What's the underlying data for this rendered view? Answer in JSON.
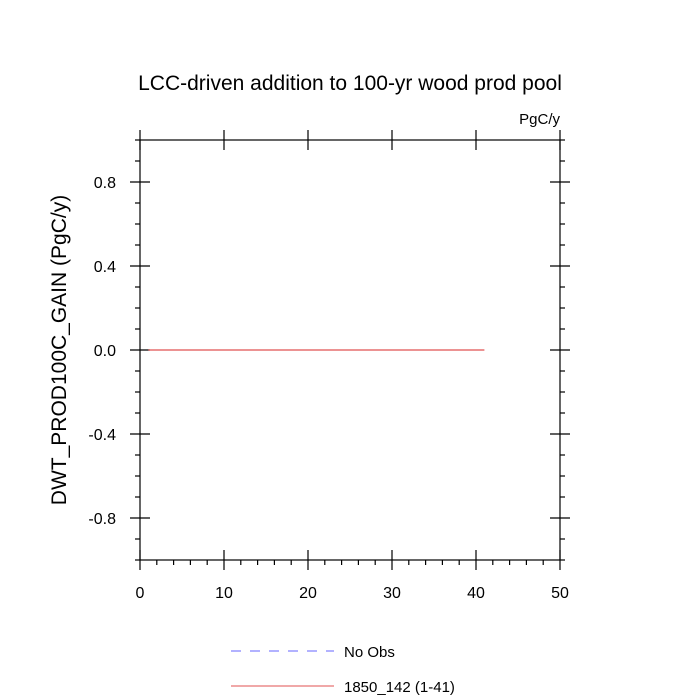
{
  "chart_data": {
    "type": "line",
    "title": "LCC-driven addition to 100-yr wood prod pool",
    "units_label": "PgC/y",
    "xlabel": "",
    "ylabel": "DWT_PROD100C_GAIN  (PgC/y)",
    "xlim": [
      0,
      50
    ],
    "ylim": [
      -1.0,
      1.0
    ],
    "x_ticks": [
      0,
      10,
      20,
      30,
      40,
      50
    ],
    "y_ticks": [
      0.8,
      0.4,
      0.0,
      -0.4,
      -0.8
    ],
    "y_tick_labels": [
      "0.8",
      "0.4",
      "0.0",
      "-0.4",
      "-0.8"
    ],
    "grid": false,
    "legend_position": "bottom",
    "series": [
      {
        "name": "No Obs",
        "color": "#6666ff",
        "dash": "dashed",
        "x": [],
        "values": []
      },
      {
        "name": "1850_142 (1-41)",
        "color": "#e05050",
        "dash": "solid",
        "x": [
          1,
          41
        ],
        "values": [
          0.0,
          0.0
        ]
      }
    ]
  }
}
